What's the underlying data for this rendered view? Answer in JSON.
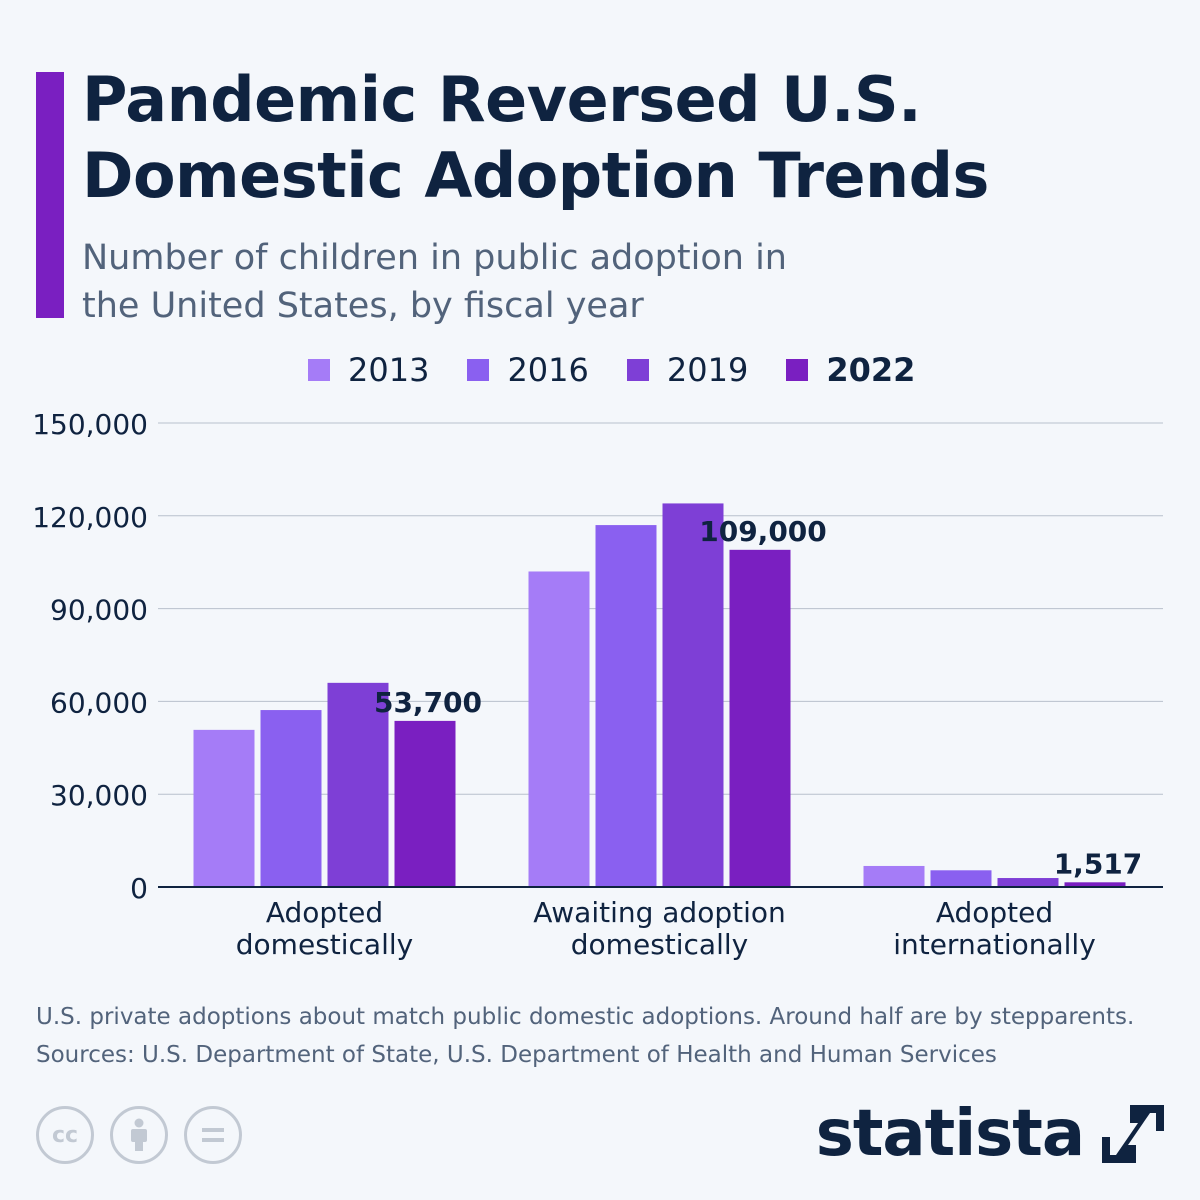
{
  "header": {
    "title": "Pandemic Reversed U.S. Domestic Adoption Trends",
    "subtitle": "Number of children in public adoption in the United States, by fiscal year"
  },
  "legend": [
    {
      "label": "2013",
      "color": "#a57cf7"
    },
    {
      "label": "2016",
      "color": "#8a60f0"
    },
    {
      "label": "2019",
      "color": "#7e3fd6"
    },
    {
      "label": "2022",
      "color": "#7a1fc1"
    }
  ],
  "chart_data": {
    "type": "bar",
    "categories": [
      [
        "Adopted",
        "domestically"
      ],
      [
        "Awaiting adoption",
        "domestically"
      ],
      [
        "Adopted",
        "internationally"
      ]
    ],
    "series": [
      {
        "name": "2013",
        "color": "#a57cf7",
        "values": [
          50800,
          102000,
          6800
        ]
      },
      {
        "name": "2016",
        "color": "#8a60f0",
        "values": [
          57200,
          117000,
          5400
        ]
      },
      {
        "name": "2019",
        "color": "#7e3fd6",
        "values": [
          66000,
          124000,
          2900
        ]
      },
      {
        "name": "2022",
        "color": "#7a1fc1",
        "values": [
          53700,
          109000,
          1517
        ]
      }
    ],
    "data_labels": [
      "53,700",
      "109,000",
      "1,517"
    ],
    "y_ticks": [
      0,
      30000,
      60000,
      90000,
      120000,
      150000
    ],
    "y_tick_labels": [
      "0",
      "30,000",
      "60,000",
      "90,000",
      "120,000",
      "150,000"
    ],
    "ylim": [
      0,
      150000
    ],
    "grid": true,
    "legend_position": "top"
  },
  "footer": {
    "note": "U.S. private adoptions about match public domestic adoptions. Around half are by stepparents.",
    "sources": "Sources: U.S. Department of State, U.S. Department of Health and Human Services",
    "brand": "statista"
  },
  "icons": [
    "creative-commons-icon",
    "attribution-icon",
    "no-derivatives-icon",
    "statista-logo-icon"
  ]
}
